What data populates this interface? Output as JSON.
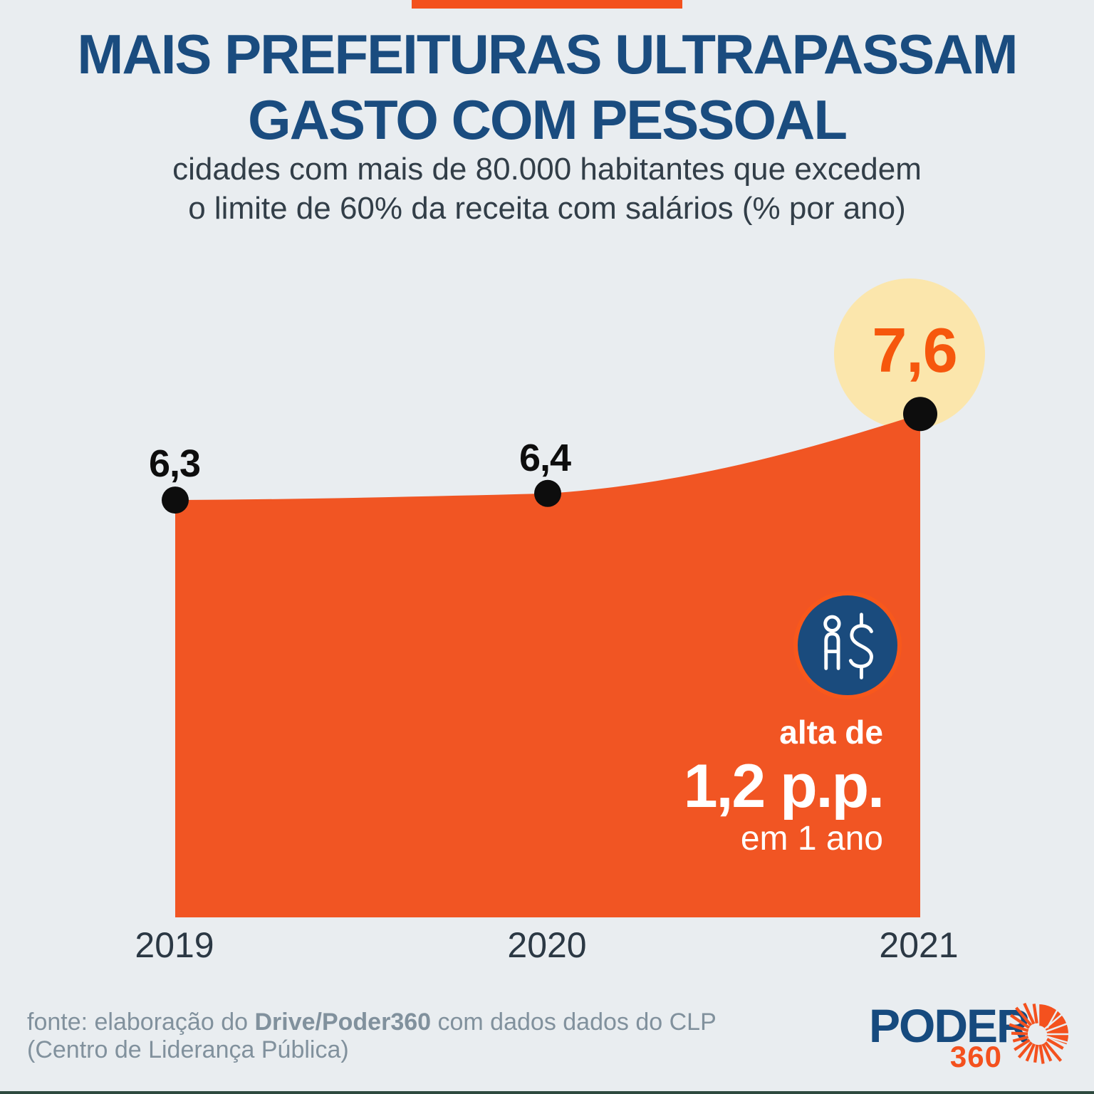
{
  "header": {
    "title_line1": "MAIS PREFEITURAS ULTRAPASSAM",
    "title_line2": "GASTO COM PESSOAL",
    "subtitle_line1": "cidades com mais de 80.000 habitantes que excedem",
    "subtitle_line2": "o limite de 60% da receita com salários (% por ano)"
  },
  "chart_data": {
    "type": "area",
    "title": "MAIS PREFEITURAS ULTRAPASSAM GASTO COM PESSOAL",
    "subtitle": "cidades com mais de 80.000 habitantes que excedem o limite de 60% da receita com salários (% por ano)",
    "categories": [
      "2019",
      "2020",
      "2021"
    ],
    "values": [
      6.3,
      6.4,
      7.6
    ],
    "value_labels": [
      "6,3",
      "6,4",
      "7,6"
    ],
    "unit": "% por ano",
    "ylim": [
      0,
      8.2
    ],
    "grid": "off",
    "legend": "none",
    "highlighted_point": "2021",
    "annotation": "alta de 1,2 p.p. em 1 ano"
  },
  "annotation": {
    "line1": "alta de",
    "value": "1,2 p.p.",
    "line2": "em 1 ano",
    "icon": "person-money-icon"
  },
  "footer": {
    "source_prefix": "fonte: elaboração do ",
    "source_bold": "Drive/Poder360",
    "source_suffix": " com dados dados do CLP",
    "source_line2": "(Centro de Liderança Pública)"
  },
  "logo": {
    "name": "PODER",
    "suffix": "360"
  },
  "colors": {
    "background": "#e9edf0",
    "area_orange": "#f15523",
    "accent_bar_orange": "#f3511e",
    "highlight_value_orange": "#f6570d",
    "highlight_circle_cream": "#fbe6ac",
    "title_navy": "#1a4c7f",
    "badge_navy": "#1a4b7d",
    "badge_ring_orange": "#f8581c",
    "dot_black": "#0d0d0d",
    "footer_gray": "#81919d",
    "logo_navy": "#164a7e",
    "logo_orange": "#f4511e"
  }
}
